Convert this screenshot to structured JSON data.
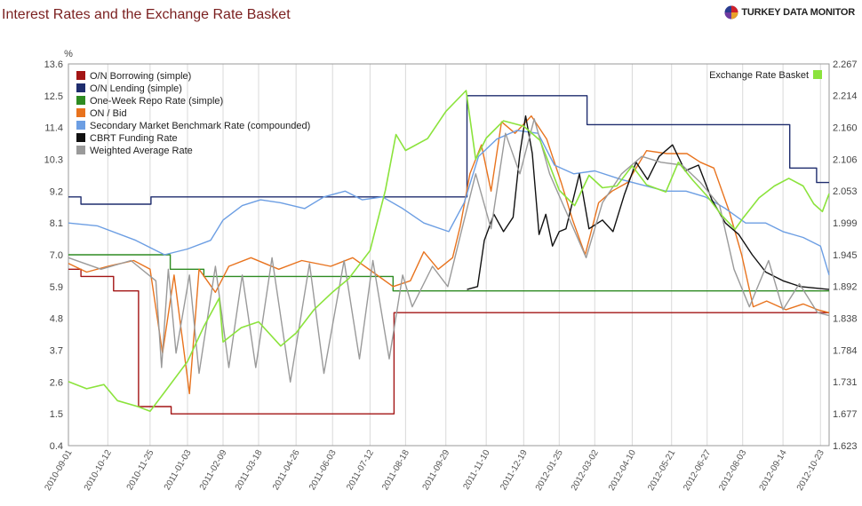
{
  "header": {
    "title": "Interest Rates and the Exchange Rate Basket",
    "brand": "TURKEY DATA MONITOR"
  },
  "chart_data": {
    "type": "line",
    "left_axis": {
      "label": "%",
      "ticks": [
        "13.6",
        "12.5",
        "11.4",
        "10.3",
        "9.2",
        "8.1",
        "7.0",
        "5.9",
        "4.8",
        "3.7",
        "2.6",
        "1.5",
        "0.4"
      ],
      "range": [
        0.4,
        13.6
      ]
    },
    "right_axis": {
      "label": "",
      "ticks": [
        "2.267",
        "2.214",
        "2.160",
        "2.106",
        "2.053",
        "1.999",
        "1.945",
        "1.892",
        "1.838",
        "1.784",
        "1.731",
        "1.677",
        "1.623"
      ],
      "range": [
        1.623,
        2.267
      ]
    },
    "x_range": [
      "2010-09-01",
      "2012-11-01"
    ],
    "x_ticks": [
      "2010-09-01",
      "2010-10-12",
      "2010-11-25",
      "2011-01-03",
      "2011-02-09",
      "2011-03-18",
      "2011-04-26",
      "2011-06-03",
      "2011-07-12",
      "2011-08-18",
      "2011-09-29",
      "2011-11-10",
      "2011-12-19",
      "2012-01-25",
      "2012-03-02",
      "2012-04-10",
      "2012-05-21",
      "2012-06-27",
      "2012-08-03",
      "2012-09-14",
      "2012-10-23"
    ],
    "grid": "vertical",
    "legend_left_position": "top-left",
    "legend_right_position": "top-right",
    "series": [
      {
        "name": "O/N Borrowing (simple)",
        "color": "#a31515",
        "axis": "left",
        "style": "step",
        "points": [
          [
            "2010-09-01",
            6.5
          ],
          [
            "2010-09-14",
            6.25
          ],
          [
            "2010-10-18",
            5.75
          ],
          [
            "2010-11-12",
            5.75
          ],
          [
            "2010-11-13",
            1.75
          ],
          [
            "2010-12-17",
            1.5
          ],
          [
            "2011-08-05",
            1.5
          ],
          [
            "2011-08-06",
            5.0
          ],
          [
            "2012-11-01",
            5.0
          ]
        ]
      },
      {
        "name": "O/N Lending (simple)",
        "color": "#1f2d6e",
        "axis": "left",
        "style": "step",
        "points": [
          [
            "2010-09-01",
            9.0
          ],
          [
            "2010-09-14",
            8.75
          ],
          [
            "2010-11-25",
            8.75
          ],
          [
            "2010-11-26",
            9.0
          ],
          [
            "2011-10-20",
            9.0
          ],
          [
            "2011-10-21",
            12.5
          ],
          [
            "2012-02-22",
            12.5
          ],
          [
            "2012-02-23",
            11.5
          ],
          [
            "2012-09-20",
            11.5
          ],
          [
            "2012-09-21",
            10.0
          ],
          [
            "2012-10-18",
            10.0
          ],
          [
            "2012-10-19",
            9.5
          ],
          [
            "2012-11-01",
            9.5
          ]
        ]
      },
      {
        "name": "One-Week Repo Rate (simple)",
        "color": "#2e8b22",
        "axis": "left",
        "style": "step",
        "points": [
          [
            "2010-09-01",
            7.0
          ],
          [
            "2010-12-15",
            7.0
          ],
          [
            "2010-12-16",
            6.5
          ],
          [
            "2011-01-20",
            6.25
          ],
          [
            "2011-08-04",
            6.25
          ],
          [
            "2011-08-05",
            5.75
          ],
          [
            "2012-11-01",
            5.75
          ]
        ]
      },
      {
        "name": "ON / Bid",
        "color": "#e8731e",
        "axis": "left",
        "style": "line",
        "points": [
          [
            "2010-09-01",
            6.7
          ],
          [
            "2010-09-20",
            6.4
          ],
          [
            "2010-10-12",
            6.6
          ],
          [
            "2010-11-08",
            6.8
          ],
          [
            "2010-11-25",
            6.5
          ],
          [
            "2010-12-08",
            3.6
          ],
          [
            "2010-12-20",
            6.3
          ],
          [
            "2011-01-05",
            2.2
          ],
          [
            "2011-01-15",
            6.5
          ],
          [
            "2011-02-01",
            5.7
          ],
          [
            "2011-02-15",
            6.6
          ],
          [
            "2011-03-10",
            6.9
          ],
          [
            "2011-04-08",
            6.5
          ],
          [
            "2011-05-02",
            6.8
          ],
          [
            "2011-06-01",
            6.6
          ],
          [
            "2011-06-24",
            6.9
          ],
          [
            "2011-07-15",
            6.4
          ],
          [
            "2011-08-05",
            5.9
          ],
          [
            "2011-08-23",
            6.1
          ],
          [
            "2011-09-06",
            7.1
          ],
          [
            "2011-09-21",
            6.5
          ],
          [
            "2011-10-06",
            6.9
          ],
          [
            "2011-10-14",
            8.0
          ],
          [
            "2011-10-24",
            9.8
          ],
          [
            "2011-11-05",
            10.8
          ],
          [
            "2011-11-15",
            9.2
          ],
          [
            "2011-11-26",
            11.6
          ],
          [
            "2011-12-10",
            11.2
          ],
          [
            "2011-12-27",
            11.8
          ],
          [
            "2012-01-12",
            11.0
          ],
          [
            "2012-01-27",
            9.5
          ],
          [
            "2012-02-08",
            8.2
          ],
          [
            "2012-02-21",
            7.0
          ],
          [
            "2012-03-06",
            8.8
          ],
          [
            "2012-03-20",
            9.2
          ],
          [
            "2012-04-05",
            9.5
          ],
          [
            "2012-04-25",
            10.6
          ],
          [
            "2012-05-16",
            10.5
          ],
          [
            "2012-06-06",
            10.5
          ],
          [
            "2012-06-20",
            10.2
          ],
          [
            "2012-07-04",
            10.0
          ],
          [
            "2012-07-20",
            8.5
          ],
          [
            "2012-08-02",
            7.0
          ],
          [
            "2012-08-14",
            5.2
          ],
          [
            "2012-08-28",
            5.4
          ],
          [
            "2012-09-17",
            5.1
          ],
          [
            "2012-10-05",
            5.3
          ],
          [
            "2012-10-20",
            5.1
          ],
          [
            "2012-11-01",
            5.0
          ]
        ]
      },
      {
        "name": "Secondary Market Benchmark Rate (compounded)",
        "color": "#6c9ee3",
        "axis": "left",
        "style": "line",
        "points": [
          [
            "2010-09-01",
            8.1
          ],
          [
            "2010-10-01",
            8.0
          ],
          [
            "2010-11-10",
            7.5
          ],
          [
            "2010-12-10",
            7.0
          ],
          [
            "2011-01-03",
            7.2
          ],
          [
            "2011-01-27",
            7.5
          ],
          [
            "2011-02-09",
            8.2
          ],
          [
            "2011-03-01",
            8.7
          ],
          [
            "2011-03-20",
            8.9
          ],
          [
            "2011-04-10",
            8.8
          ],
          [
            "2011-05-05",
            8.6
          ],
          [
            "2011-05-25",
            9.0
          ],
          [
            "2011-06-16",
            9.2
          ],
          [
            "2011-07-04",
            8.9
          ],
          [
            "2011-07-25",
            9.0
          ],
          [
            "2011-08-15",
            8.6
          ],
          [
            "2011-09-06",
            8.1
          ],
          [
            "2011-10-02",
            7.8
          ],
          [
            "2011-10-18",
            8.8
          ],
          [
            "2011-11-02",
            10.4
          ],
          [
            "2011-11-21",
            11.0
          ],
          [
            "2011-12-12",
            11.3
          ],
          [
            "2012-01-03",
            11.2
          ],
          [
            "2012-01-20",
            10.1
          ],
          [
            "2012-02-09",
            9.8
          ],
          [
            "2012-03-02",
            9.9
          ],
          [
            "2012-03-30",
            9.6
          ],
          [
            "2012-04-22",
            9.4
          ],
          [
            "2012-05-15",
            9.2
          ],
          [
            "2012-06-05",
            9.2
          ],
          [
            "2012-06-25",
            9.0
          ],
          [
            "2012-07-16",
            8.6
          ],
          [
            "2012-08-06",
            8.1
          ],
          [
            "2012-08-27",
            8.1
          ],
          [
            "2012-09-14",
            7.8
          ],
          [
            "2012-10-05",
            7.6
          ],
          [
            "2012-10-23",
            7.3
          ],
          [
            "2012-11-01",
            6.3
          ]
        ]
      },
      {
        "name": "CBRT Funding Rate",
        "color": "#111111",
        "axis": "left",
        "style": "line",
        "points": [
          [
            "2011-10-21",
            5.8
          ],
          [
            "2011-11-01",
            5.9
          ],
          [
            "2011-11-08",
            7.5
          ],
          [
            "2011-11-18",
            8.4
          ],
          [
            "2011-11-28",
            7.8
          ],
          [
            "2011-12-08",
            8.3
          ],
          [
            "2011-12-15",
            10.5
          ],
          [
            "2011-12-21",
            11.8
          ],
          [
            "2011-12-28",
            10.5
          ],
          [
            "2012-01-04",
            7.7
          ],
          [
            "2012-01-11",
            8.4
          ],
          [
            "2012-01-18",
            7.3
          ],
          [
            "2012-01-25",
            7.8
          ],
          [
            "2012-02-01",
            7.9
          ],
          [
            "2012-02-15",
            9.8
          ],
          [
            "2012-02-25",
            7.9
          ],
          [
            "2012-03-10",
            8.2
          ],
          [
            "2012-03-21",
            7.8
          ],
          [
            "2012-04-02",
            9.1
          ],
          [
            "2012-04-14",
            10.2
          ],
          [
            "2012-04-26",
            9.6
          ],
          [
            "2012-05-08",
            10.4
          ],
          [
            "2012-05-22",
            10.8
          ],
          [
            "2012-06-04",
            9.9
          ],
          [
            "2012-06-18",
            10.1
          ],
          [
            "2012-07-02",
            8.9
          ],
          [
            "2012-07-16",
            8.1
          ],
          [
            "2012-07-30",
            7.7
          ],
          [
            "2012-08-13",
            7.0
          ],
          [
            "2012-08-27",
            6.4
          ],
          [
            "2012-09-14",
            6.1
          ],
          [
            "2012-10-02",
            5.9
          ],
          [
            "2012-11-01",
            5.8
          ]
        ]
      },
      {
        "name": "Weighted Average Rate",
        "color": "#9a9a9a",
        "axis": "left",
        "style": "line",
        "points": [
          [
            "2010-09-01",
            6.9
          ],
          [
            "2010-10-05",
            6.5
          ],
          [
            "2010-11-05",
            6.8
          ],
          [
            "2010-12-01",
            6.1
          ],
          [
            "2010-12-07",
            3.1
          ],
          [
            "2010-12-14",
            6.5
          ],
          [
            "2010-12-22",
            3.6
          ],
          [
            "2011-01-05",
            6.3
          ],
          [
            "2011-01-15",
            2.9
          ],
          [
            "2011-02-01",
            6.6
          ],
          [
            "2011-02-15",
            3.1
          ],
          [
            "2011-03-01",
            6.3
          ],
          [
            "2011-03-15",
            3.1
          ],
          [
            "2011-04-01",
            6.9
          ],
          [
            "2011-04-20",
            2.6
          ],
          [
            "2011-05-10",
            6.7
          ],
          [
            "2011-05-25",
            2.9
          ],
          [
            "2011-06-15",
            6.8
          ],
          [
            "2011-07-01",
            3.4
          ],
          [
            "2011-07-15",
            6.8
          ],
          [
            "2011-08-01",
            3.4
          ],
          [
            "2011-08-15",
            6.3
          ],
          [
            "2011-08-25",
            5.2
          ],
          [
            "2011-09-15",
            6.6
          ],
          [
            "2011-10-01",
            5.9
          ],
          [
            "2011-10-15",
            7.8
          ],
          [
            "2011-10-30",
            9.8
          ],
          [
            "2011-11-15",
            7.9
          ],
          [
            "2011-11-30",
            11.2
          ],
          [
            "2011-12-15",
            9.8
          ],
          [
            "2011-12-30",
            11.7
          ],
          [
            "2012-01-15",
            9.8
          ],
          [
            "2012-02-05",
            8.2
          ],
          [
            "2012-02-22",
            6.9
          ],
          [
            "2012-03-10",
            8.8
          ],
          [
            "2012-03-30",
            9.8
          ],
          [
            "2012-04-20",
            10.4
          ],
          [
            "2012-05-10",
            10.2
          ],
          [
            "2012-06-01",
            10.1
          ],
          [
            "2012-06-20",
            9.5
          ],
          [
            "2012-07-10",
            8.7
          ],
          [
            "2012-07-25",
            6.5
          ],
          [
            "2012-08-10",
            5.2
          ],
          [
            "2012-08-30",
            6.8
          ],
          [
            "2012-09-14",
            5.1
          ],
          [
            "2012-10-01",
            6.0
          ],
          [
            "2012-10-20",
            5.0
          ],
          [
            "2012-11-01",
            4.9
          ]
        ]
      },
      {
        "name": "Exchange Rate Basket",
        "color": "#8be33c",
        "axis": "right",
        "style": "line",
        "points": [
          [
            "2010-09-01",
            1.731
          ],
          [
            "2010-09-20",
            1.719
          ],
          [
            "2010-10-08",
            1.726
          ],
          [
            "2010-10-22",
            1.699
          ],
          [
            "2010-11-12",
            1.689
          ],
          [
            "2010-11-25",
            1.681
          ],
          [
            "2010-12-10",
            1.713
          ],
          [
            "2011-01-03",
            1.765
          ],
          [
            "2011-01-20",
            1.824
          ],
          [
            "2011-02-05",
            1.872
          ],
          [
            "2011-02-09",
            1.798
          ],
          [
            "2011-02-28",
            1.822
          ],
          [
            "2011-03-18",
            1.832
          ],
          [
            "2011-04-10",
            1.791
          ],
          [
            "2011-04-26",
            1.813
          ],
          [
            "2011-05-15",
            1.853
          ],
          [
            "2011-06-03",
            1.882
          ],
          [
            "2011-06-20",
            1.905
          ],
          [
            "2011-07-12",
            1.952
          ],
          [
            "2011-07-28",
            2.054
          ],
          [
            "2011-08-08",
            2.148
          ],
          [
            "2011-08-18",
            2.121
          ],
          [
            "2011-09-10",
            2.141
          ],
          [
            "2011-09-29",
            2.187
          ],
          [
            "2011-10-20",
            2.222
          ],
          [
            "2011-10-30",
            2.106
          ],
          [
            "2011-11-10",
            2.142
          ],
          [
            "2011-11-28",
            2.171
          ],
          [
            "2011-12-19",
            2.162
          ],
          [
            "2012-01-05",
            2.138
          ],
          [
            "2012-01-25",
            2.054
          ],
          [
            "2012-02-10",
            2.028
          ],
          [
            "2012-02-25",
            2.079
          ],
          [
            "2012-03-10",
            2.058
          ],
          [
            "2012-03-25",
            2.061
          ],
          [
            "2012-04-10",
            2.095
          ],
          [
            "2012-04-25",
            2.063
          ],
          [
            "2012-05-15",
            2.051
          ],
          [
            "2012-05-28",
            2.101
          ],
          [
            "2012-06-12",
            2.071
          ],
          [
            "2012-06-27",
            2.044
          ],
          [
            "2012-07-12",
            2.012
          ],
          [
            "2012-07-26",
            1.988
          ],
          [
            "2012-08-03",
            2.006
          ],
          [
            "2012-08-20",
            2.041
          ],
          [
            "2012-09-05",
            2.061
          ],
          [
            "2012-09-20",
            2.074
          ],
          [
            "2012-10-05",
            2.061
          ],
          [
            "2012-10-16",
            2.031
          ],
          [
            "2012-10-25",
            2.018
          ],
          [
            "2012-11-01",
            2.048
          ]
        ]
      }
    ]
  }
}
